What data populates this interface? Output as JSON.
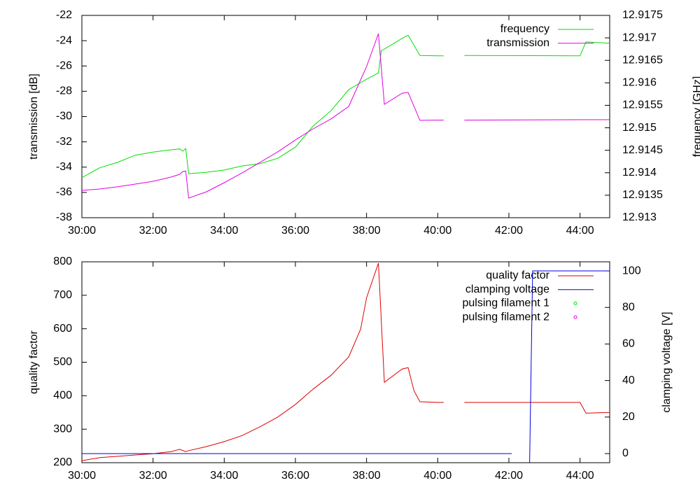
{
  "chart_data": [
    {
      "type": "line",
      "ylabel": "transmission [dB]",
      "y2label": "frequency [GHz]",
      "x": [
        1800,
        1830,
        1860,
        1890,
        1920,
        1950,
        1965,
        1970,
        1975,
        1980,
        2010,
        2040,
        2070,
        2100,
        2130,
        2160,
        2190,
        2220,
        2250,
        2280,
        2300,
        2305,
        2310,
        2340,
        2350,
        2370,
        2400,
        2410,
        2425,
        2445,
        2640,
        2650,
        2690
      ],
      "xlim": [
        1800,
        2690
      ],
      "xticks": [
        {
          "value": 1800,
          "label": "30:00"
        },
        {
          "value": 1920,
          "label": "32:00"
        },
        {
          "value": 2040,
          "label": "34:00"
        },
        {
          "value": 2160,
          "label": "36:00"
        },
        {
          "value": 2280,
          "label": "38:00"
        },
        {
          "value": 2400,
          "label": "40:00"
        },
        {
          "value": 2520,
          "label": "42:00"
        },
        {
          "value": 2640,
          "label": "44:00"
        }
      ],
      "ylim": [
        -38,
        -22
      ],
      "yticks": [
        -38,
        -36,
        -34,
        -32,
        -30,
        -28,
        -26,
        -24,
        -22
      ],
      "y2lim": [
        12.913,
        12.9175
      ],
      "y2ticks": [
        12.913,
        12.9135,
        12.914,
        12.9145,
        12.915,
        12.9155,
        12.916,
        12.9165,
        12.917,
        12.9175
      ],
      "legend": "top right",
      "series": [
        {
          "name": "frequency",
          "color": "#00e000",
          "axis": "y2",
          "values": [
            12.91389,
            12.91411,
            12.91423,
            12.91439,
            12.91446,
            12.91451,
            12.91453,
            12.91448,
            12.91454,
            12.91398,
            12.91401,
            12.91406,
            12.91415,
            12.9142,
            12.91432,
            12.91457,
            12.91504,
            12.91538,
            12.91585,
            12.91608,
            12.91622,
            12.91672,
            12.91675,
            12.91699,
            12.91706,
            12.91661,
            12.9166,
            12.9166,
            null,
            12.91661,
            12.9166,
            12.91691,
            12.91688
          ]
        },
        {
          "name": "transmission",
          "color": "#e000e0",
          "values": [
            -35.84,
            -35.73,
            -35.56,
            -35.34,
            -35.12,
            -34.79,
            -34.57,
            -34.35,
            -34.3,
            -36.45,
            -35.95,
            -35.23,
            -34.46,
            -33.63,
            -32.8,
            -31.85,
            -30.97,
            -30.19,
            -29.2,
            -26.04,
            -23.44,
            -26.2,
            -29.03,
            -28.15,
            -28.09,
            -30.3,
            -30.28,
            -30.28,
            null,
            -30.28,
            -30.25,
            -30.25,
            -30.25
          ]
        }
      ]
    },
    {
      "type": "line",
      "ylabel": "quality factor",
      "y2label": "clamping voltage [V]",
      "x": [
        1800,
        1830,
        1860,
        1890,
        1920,
        1950,
        1965,
        1975,
        1980,
        2010,
        2040,
        2070,
        2100,
        2130,
        2160,
        2190,
        2220,
        2250,
        2270,
        2280,
        2300,
        2310,
        2340,
        2350,
        2360,
        2370,
        2400,
        2410,
        2425,
        2445,
        2525,
        2540,
        2555,
        2560,
        2640,
        2650,
        2690
      ],
      "xlim": [
        1800,
        2690
      ],
      "xticks": [
        {
          "value": 1800,
          "label": "30:00"
        },
        {
          "value": 1920,
          "label": "32:00"
        },
        {
          "value": 2040,
          "label": "34:00"
        },
        {
          "value": 2160,
          "label": "36:00"
        },
        {
          "value": 2280,
          "label": "38:00"
        },
        {
          "value": 2400,
          "label": "40:00"
        },
        {
          "value": 2520,
          "label": "42:00"
        },
        {
          "value": 2640,
          "label": "44:00"
        }
      ],
      "ylim": [
        200,
        800
      ],
      "yticks": [
        200,
        300,
        400,
        500,
        600,
        700,
        800
      ],
      "y2lim": [
        -5,
        105
      ],
      "y2ticks": [
        0,
        20,
        40,
        60,
        80,
        100
      ],
      "legend": "top right",
      "series": [
        {
          "name": "quality factor",
          "color": "#e00000",
          "values": [
            206,
            215,
            219,
            223,
            227,
            233,
            240,
            233,
            236,
            248,
            263,
            281,
            307,
            336,
            374,
            420,
            461,
            516,
            599,
            693,
            796,
            440,
            480,
            484,
            415,
            382,
            380,
            380,
            null,
            380,
            380,
            380,
            380,
            380,
            380,
            348,
            350
          ]
        },
        {
          "name": "clamping voltage",
          "color": "#0000e0",
          "axis": "y2",
          "values": [
            0,
            0,
            0,
            0,
            0,
            0,
            0,
            0,
            0,
            0,
            0,
            0,
            0,
            0,
            0,
            0,
            0,
            0,
            0,
            0,
            0,
            0,
            0,
            0,
            0,
            0,
            0,
            0,
            0,
            0,
            0,
            null,
            -5,
            100,
            100,
            100,
            100
          ]
        },
        {
          "name": "pulsing filament 1",
          "color": "#00e000",
          "marker": "circle",
          "values": [
            null,
            null,
            null,
            null,
            null,
            null,
            null,
            null,
            null,
            null,
            null,
            null,
            null,
            null,
            null,
            null,
            null,
            null,
            null,
            null,
            null,
            null,
            null,
            null,
            null,
            null,
            null,
            null,
            null,
            null,
            null,
            null,
            null,
            null,
            null,
            null,
            null
          ]
        },
        {
          "name": "pulsing filament 2",
          "color": "#e000e0",
          "marker": "circle",
          "values": [
            null,
            null,
            null,
            null,
            null,
            null,
            null,
            null,
            null,
            null,
            null,
            null,
            null,
            null,
            null,
            null,
            null,
            null,
            null,
            null,
            null,
            null,
            null,
            null,
            null,
            null,
            null,
            null,
            null,
            null,
            null,
            null,
            null,
            null,
            null,
            null,
            null
          ]
        }
      ]
    }
  ]
}
